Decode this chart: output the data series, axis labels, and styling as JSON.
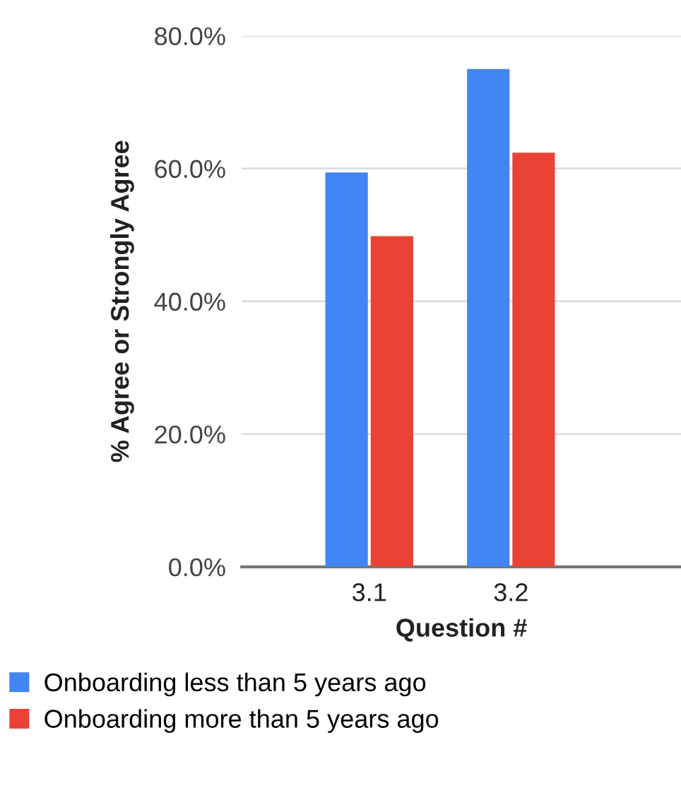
{
  "chart_data": {
    "type": "bar",
    "xlabel": "Question #",
    "ylabel": "% Agree or Strongly Agree",
    "categories": [
      "3.1",
      "3.2"
    ],
    "series": [
      {
        "name": "Onboarding less than 5 years ago",
        "color": "#4285f4",
        "values": [
          59.4,
          75.0
        ]
      },
      {
        "name": "Onboarding more than 5 years ago",
        "color": "#ea4335",
        "values": [
          49.8,
          62.4
        ]
      }
    ],
    "ylim": [
      0,
      80
    ],
    "yticks": [
      {
        "value": 0,
        "label": "0.0%"
      },
      {
        "value": 20,
        "label": "20.0%"
      },
      {
        "value": 40,
        "label": "40.0%"
      },
      {
        "value": 60,
        "label": "60.0%"
      },
      {
        "value": 80,
        "label": "80.0%"
      }
    ],
    "grid": "y",
    "legend": "bottom"
  }
}
